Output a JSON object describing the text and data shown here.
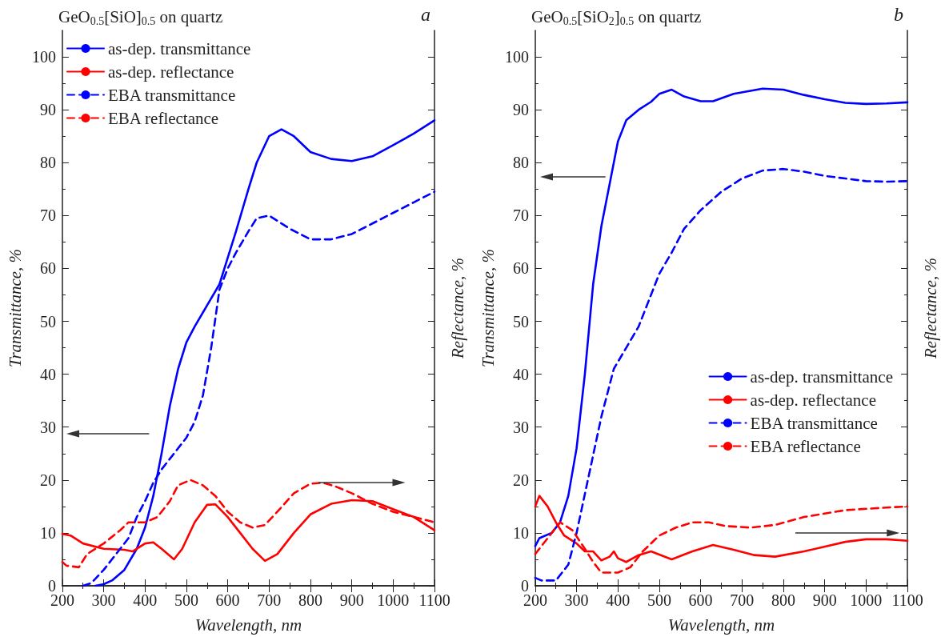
{
  "chart_data": [
    {
      "type": "line",
      "title": "GeO$_{0.5}$[SiO]$_{0.5}$ on quartz",
      "xlabel": "Wavelength, nm",
      "ylabel": "Transmittance, %",
      "y2label": "Reflectance, %",
      "annotations": [
        "a"
      ],
      "xlim": [
        200,
        1100
      ],
      "xticks": [
        200,
        300,
        400,
        500,
        600,
        700,
        800,
        900,
        1000,
        1100
      ],
      "ylim": [
        0,
        105
      ],
      "yticks": [
        0,
        10,
        20,
        30,
        40,
        50,
        60,
        70,
        80,
        90,
        100
      ],
      "grid": false,
      "legend": "top left",
      "marker": "none",
      "series": [
        {
          "name": "as-dep. transmittance",
          "color": "#0000ff",
          "line_style": "solid",
          "x": [
            280,
            300,
            320,
            350,
            380,
            400,
            420,
            440,
            460,
            480,
            500,
            520,
            550,
            580,
            600,
            620,
            650,
            670,
            700,
            730,
            760,
            800,
            850,
            900,
            950,
            1000,
            1050,
            1100
          ],
          "values": [
            0,
            0.3,
            1,
            3,
            7,
            11,
            17,
            25,
            34,
            41,
            46,
            49,
            53,
            57,
            62,
            67,
            75,
            80,
            85,
            86.3,
            85,
            82,
            80.7,
            80.3,
            81.2,
            83.3,
            85.5,
            88
          ]
        },
        {
          "name": "as-dep. reflectance",
          "color": "#ff0000",
          "line_style": "solid",
          "x": [
            200,
            220,
            250,
            300,
            350,
            370,
            400,
            420,
            440,
            470,
            490,
            520,
            550,
            570,
            600,
            630,
            660,
            690,
            720,
            760,
            800,
            850,
            900,
            950,
            1000,
            1050,
            1100
          ],
          "values": [
            9.8,
            9.5,
            8,
            7,
            6.8,
            6.5,
            8,
            8.2,
            7,
            5,
            7,
            12,
            15.3,
            15.4,
            13,
            10,
            7,
            4.7,
            6,
            10,
            13.5,
            15.5,
            16.2,
            16,
            14.5,
            13,
            10.5
          ]
        },
        {
          "name": "EBA transmittance",
          "color": "#0000ff",
          "line_style": "dashed",
          "x": [
            250,
            270,
            300,
            330,
            360,
            380,
            400,
            420,
            440,
            460,
            500,
            520,
            540,
            560,
            580,
            600,
            620,
            650,
            670,
            700,
            750,
            800,
            850,
            900,
            950,
            1000,
            1050,
            1100
          ],
          "values": [
            0,
            0.5,
            3,
            6,
            9,
            13,
            16,
            19.5,
            22,
            24,
            28,
            31,
            36,
            45,
            56,
            60,
            63,
            67,
            69.5,
            70,
            67.5,
            65.5,
            65.5,
            66.5,
            68.5,
            70.5,
            72.5,
            74.5
          ]
        },
        {
          "name": "EBA reflectance",
          "color": "#ff0000",
          "line_style": "dashed",
          "x": [
            200,
            210,
            240,
            260,
            300,
            340,
            360,
            400,
            430,
            460,
            480,
            510,
            540,
            570,
            600,
            630,
            660,
            690,
            720,
            760,
            800,
            830,
            860,
            900,
            950,
            1000,
            1050,
            1100
          ],
          "values": [
            4.5,
            3.8,
            3.5,
            6,
            8,
            10.5,
            12,
            12,
            13,
            16,
            19,
            20,
            19,
            17,
            14,
            12,
            11,
            11.5,
            14,
            17.5,
            19.3,
            19.5,
            18.8,
            17.5,
            15.5,
            14,
            13,
            12
          ]
        }
      ]
    },
    {
      "type": "line",
      "title": "GeO$_{0.5}$[SiO$_{2}$]$_{0.5}$ on quartz",
      "xlabel": "Wavelength, nm",
      "ylabel": "Transmittance, %",
      "y2label": "Reflectance, %",
      "annotations": [
        "b"
      ],
      "xlim": [
        200,
        1100
      ],
      "xticks": [
        200,
        300,
        400,
        500,
        600,
        700,
        800,
        900,
        1000,
        1100
      ],
      "ylim": [
        0,
        105
      ],
      "yticks": [
        0,
        10,
        20,
        30,
        40,
        50,
        60,
        70,
        80,
        90,
        100
      ],
      "grid": false,
      "legend": "center right",
      "marker": "none",
      "series": [
        {
          "name": "as-dep. transmittance",
          "color": "#0000ff",
          "line_style": "solid",
          "x": [
            200,
            210,
            240,
            260,
            280,
            300,
            320,
            340,
            360,
            380,
            400,
            420,
            450,
            480,
            500,
            530,
            560,
            600,
            630,
            680,
            750,
            800,
            850,
            900,
            950,
            1000,
            1050,
            1100
          ],
          "values": [
            7.5,
            9,
            10,
            12,
            17,
            26,
            40,
            57,
            68,
            76,
            84,
            88,
            90,
            91.5,
            93,
            93.8,
            92.5,
            91.6,
            91.6,
            93,
            94,
            93.8,
            92.8,
            92,
            91.3,
            91.1,
            91.2,
            91.4
          ]
        },
        {
          "name": "as-dep. reflectance",
          "color": "#ff0000",
          "line_style": "solid",
          "x": [
            200,
            210,
            230,
            250,
            270,
            300,
            320,
            340,
            360,
            380,
            390,
            400,
            420,
            450,
            480,
            530,
            580,
            630,
            680,
            730,
            780,
            850,
            950,
            1000,
            1050,
            1100
          ],
          "values": [
            15,
            17,
            15,
            12,
            9.5,
            8,
            6.5,
            6.5,
            4.8,
            5.5,
            6.5,
            5.2,
            4.5,
            5.8,
            6.5,
            5,
            6.5,
            7.7,
            6.8,
            5.8,
            5.5,
            6.5,
            8.3,
            8.8,
            8.8,
            8.5
          ]
        },
        {
          "name": "EBA transmittance",
          "color": "#0000ff",
          "line_style": "dashed",
          "x": [
            200,
            215,
            250,
            280,
            300,
            330,
            360,
            390,
            420,
            450,
            480,
            500,
            530,
            560,
            600,
            650,
            700,
            750,
            800,
            850,
            900,
            950,
            1000,
            1050,
            1100
          ],
          "values": [
            1.5,
            1,
            1,
            4,
            10,
            21,
            32,
            41,
            45,
            49,
            55,
            59,
            63,
            67.5,
            71,
            74.5,
            77,
            78.5,
            78.8,
            78.3,
            77.5,
            77,
            76.5,
            76.4,
            76.5
          ]
        },
        {
          "name": "EBA reflectance",
          "color": "#ff0000",
          "line_style": "dashed",
          "x": [
            200,
            230,
            260,
            290,
            320,
            340,
            360,
            400,
            430,
            460,
            500,
            540,
            580,
            620,
            660,
            720,
            780,
            850,
            950,
            1050,
            1100
          ],
          "values": [
            6,
            9,
            12,
            10.5,
            7,
            4.5,
            2.5,
            2.5,
            3.5,
            6.5,
            9.5,
            11,
            12,
            12,
            11.3,
            11,
            11.5,
            13,
            14.3,
            14.8,
            15
          ]
        }
      ]
    }
  ]
}
